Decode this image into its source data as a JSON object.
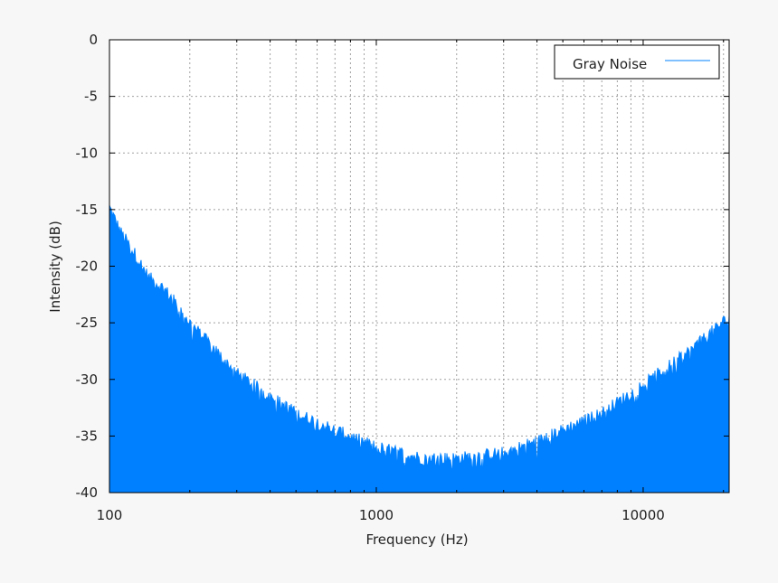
{
  "chart_data": {
    "type": "area",
    "xlabel": "Frequency (Hz)",
    "ylabel": "Intensity (dB)",
    "xscale": "log",
    "xlim": [
      100,
      21000
    ],
    "ylim": [
      -40,
      0
    ],
    "grid": true,
    "legend_position": "top-right",
    "x_ticks": [
      100,
      1000,
      10000
    ],
    "x_tick_labels": [
      "100",
      "1000",
      "10000"
    ],
    "y_ticks": [
      0,
      -5,
      -10,
      -15,
      -20,
      -25,
      -30,
      -35,
      -40
    ],
    "y_tick_labels": [
      "0",
      "-5",
      "-10",
      "-15",
      "-20",
      "-25",
      "-30",
      "-35",
      "-40"
    ],
    "series": [
      {
        "name": "Gray Noise",
        "color": "#0080ff",
        "x": [
          100,
          110,
          125,
          140,
          160,
          180,
          200,
          250,
          300,
          400,
          500,
          700,
          1000,
          1500,
          2000,
          3000,
          4000,
          5000,
          7000,
          10000,
          15000,
          21000
        ],
        "y": [
          -14.8,
          -17,
          -19,
          -21,
          -22,
          -23.5,
          -25,
          -27.5,
          -29.5,
          -31.5,
          -33,
          -34.5,
          -36,
          -37,
          -37,
          -36.5,
          -35.5,
          -34.5,
          -33,
          -30.5,
          -27.5,
          -24.5
        ]
      }
    ]
  }
}
